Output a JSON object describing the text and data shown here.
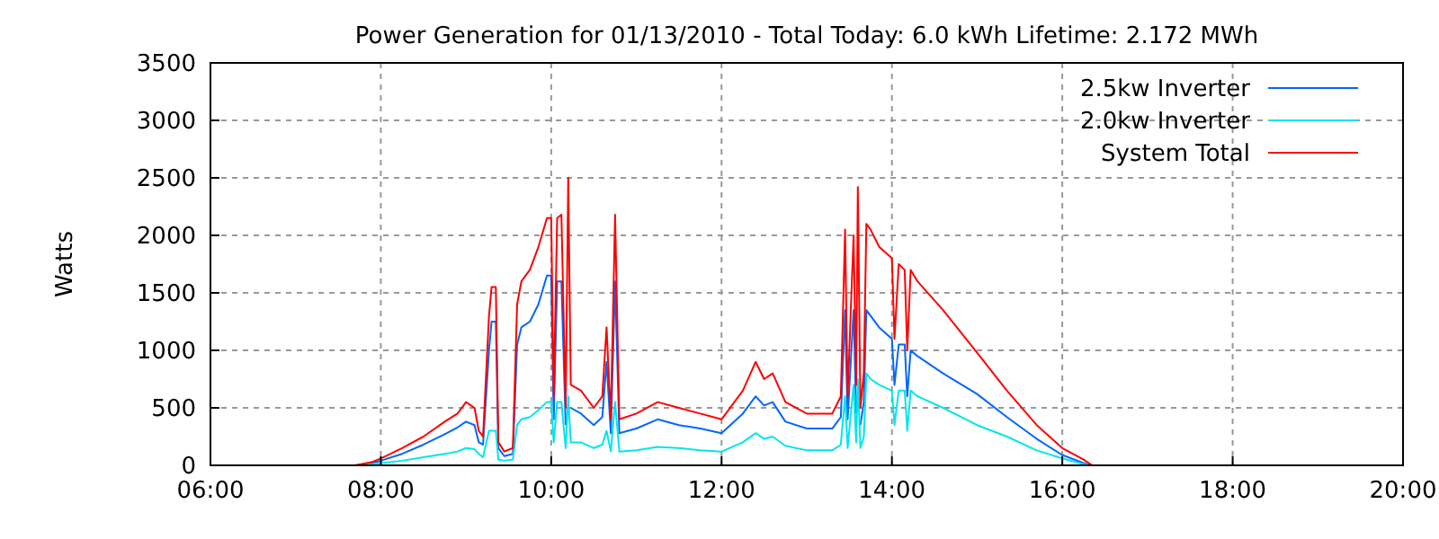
{
  "chart_data": {
    "type": "line",
    "title": "Power Generation for 01/13/2010 - Total Today: 6.0 kWh   Lifetime: 2.172 MWh",
    "ylabel": "Watts",
    "x": [
      7.7,
      7.9,
      8.0,
      8.25,
      8.5,
      8.75,
      8.9,
      9.0,
      9.1,
      9.15,
      9.2,
      9.27,
      9.3,
      9.35,
      9.38,
      9.45,
      9.55,
      9.6,
      9.65,
      9.75,
      9.85,
      9.95,
      10.0,
      10.03,
      10.07,
      10.12,
      10.17,
      10.2,
      10.23,
      10.35,
      10.5,
      10.6,
      10.65,
      10.7,
      10.75,
      10.8,
      11.0,
      11.25,
      11.5,
      11.75,
      12.0,
      12.25,
      12.4,
      12.5,
      12.6,
      12.75,
      13.0,
      13.3,
      13.4,
      13.45,
      13.48,
      13.55,
      13.58,
      13.6,
      13.63,
      13.67,
      13.7,
      13.75,
      13.85,
      14.0,
      14.03,
      14.08,
      14.15,
      14.18,
      14.22,
      14.3,
      14.6,
      15.0,
      15.35,
      15.7,
      16.0,
      16.25,
      16.35
    ],
    "series": [
      {
        "name": "2.5kw Inverter",
        "color": "#0066ff",
        "values": [
          0,
          20,
          40,
          100,
          180,
          270,
          330,
          380,
          350,
          200,
          180,
          1000,
          1250,
          1250,
          150,
          80,
          100,
          1050,
          1200,
          1250,
          1400,
          1650,
          1650,
          400,
          1600,
          1600,
          350,
          null,
          500,
          450,
          350,
          420,
          900,
          280,
          1600,
          280,
          320,
          400,
          350,
          320,
          280,
          450,
          600,
          520,
          550,
          380,
          320,
          320,
          420,
          1350,
          400,
          1350,
          450,
          null,
          350,
          550,
          1350,
          1300,
          1200,
          1100,
          700,
          1050,
          1050,
          600,
          1000,
          950,
          800,
          620,
          420,
          230,
          90,
          20,
          0
        ]
      },
      {
        "name": "2.0kw Inverter",
        "color": "#00e5ee",
        "values": [
          0,
          10,
          20,
          40,
          70,
          100,
          120,
          150,
          140,
          100,
          70,
          300,
          300,
          300,
          50,
          40,
          50,
          350,
          400,
          420,
          480,
          550,
          550,
          200,
          550,
          550,
          150,
          600,
          200,
          200,
          150,
          180,
          300,
          120,
          550,
          120,
          130,
          160,
          150,
          130,
          120,
          200,
          280,
          230,
          250,
          170,
          130,
          130,
          180,
          600,
          150,
          700,
          200,
          750,
          150,
          250,
          800,
          750,
          700,
          650,
          350,
          650,
          650,
          300,
          650,
          600,
          500,
          350,
          250,
          130,
          60,
          10,
          0
        ]
      },
      {
        "name": "System Total",
        "color": "#ff0000",
        "values": [
          0,
          30,
          60,
          150,
          250,
          380,
          450,
          550,
          500,
          300,
          250,
          1300,
          1550,
          1550,
          200,
          120,
          150,
          1400,
          1600,
          1700,
          1900,
          2150,
          2150,
          600,
          2150,
          2180,
          500,
          2500,
          700,
          650,
          500,
          600,
          1200,
          400,
          2180,
          400,
          450,
          550,
          500,
          450,
          400,
          650,
          900,
          750,
          800,
          550,
          450,
          450,
          600,
          2050,
          600,
          2000,
          700,
          2420,
          500,
          800,
          2100,
          2050,
          1900,
          1800,
          1100,
          1750,
          1700,
          1000,
          1700,
          1600,
          1350,
          980,
          650,
          350,
          150,
          50,
          0
        ]
      }
    ],
    "xlim": [
      6,
      20
    ],
    "xticks": [
      {
        "value": 6,
        "label": "06:00"
      },
      {
        "value": 8,
        "label": "08:00"
      },
      {
        "value": 10,
        "label": "10:00"
      },
      {
        "value": 12,
        "label": "12:00"
      },
      {
        "value": 14,
        "label": "14:00"
      },
      {
        "value": 16,
        "label": "16:00"
      },
      {
        "value": 18,
        "label": "18:00"
      },
      {
        "value": 20,
        "label": "20:00"
      }
    ],
    "ylim": [
      0,
      3500
    ],
    "yticks": [
      0,
      500,
      1000,
      1500,
      2000,
      2500,
      3000,
      3500
    ],
    "grid": true,
    "legend": "top right",
    "marker": "none",
    "line_style": "solid"
  }
}
